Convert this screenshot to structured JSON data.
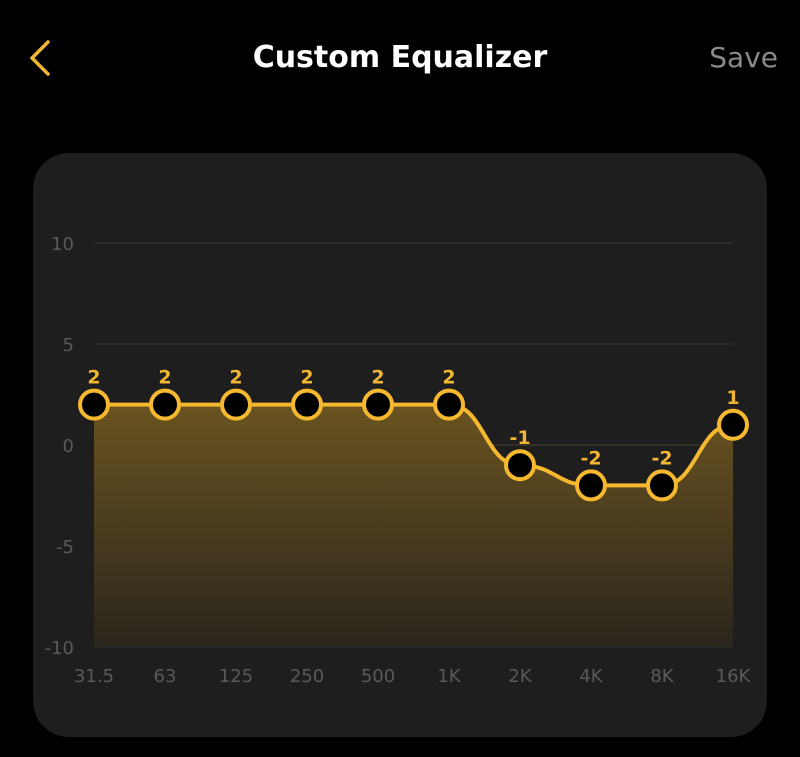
{
  "header": {
    "title": "Custom Equalizer",
    "save_label": "Save",
    "back_icon": "chevron-left-icon"
  },
  "colors": {
    "accent": "#f5b82e",
    "background": "#000000",
    "card": "#1e1e1e"
  },
  "chart_data": {
    "type": "line",
    "categories": [
      "31.5",
      "63",
      "125",
      "250",
      "500",
      "1K",
      "2K",
      "4K",
      "8K",
      "16K"
    ],
    "values": [
      2,
      2,
      2,
      2,
      2,
      2,
      -1,
      -2,
      -2,
      1
    ],
    "data_labels": [
      "2",
      "2",
      "2",
      "2",
      "2",
      "2",
      "-1",
      "-2",
      "-2",
      "1"
    ],
    "yticks": [
      "10",
      "5",
      "0",
      "-5",
      "-10"
    ],
    "ylim": [
      -10,
      10
    ],
    "grid": true,
    "fill": "gradient area below line"
  }
}
